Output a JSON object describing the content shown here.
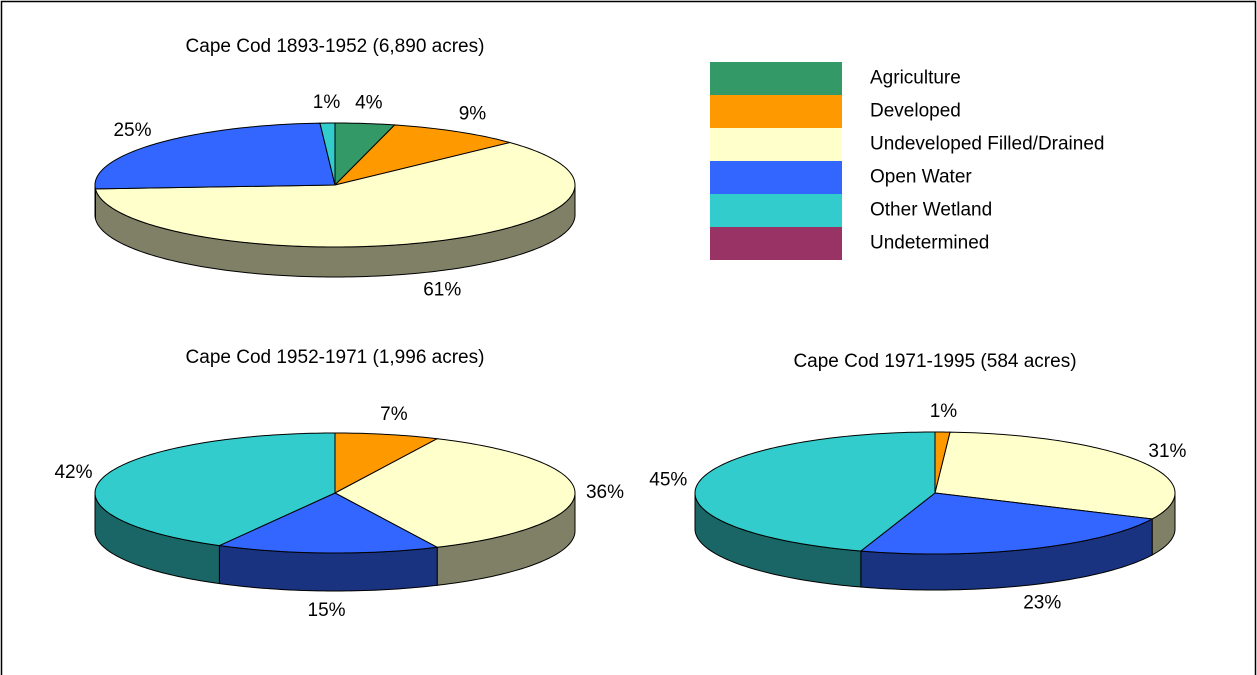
{
  "chart_data": [
    {
      "type": "pie",
      "title": "Cape Cod 1893-1952 (6,890 acres)",
      "categories": [
        "Agriculture",
        "Developed",
        "Undeveloped Filled/Drained",
        "Open Water",
        "Other Wetland",
        "Undetermined"
      ],
      "colors": [
        "#339966",
        "#FF9900",
        "#FFFFCC",
        "#3366FF",
        "#33CCCC",
        "#993366"
      ],
      "values": [
        4,
        9,
        61,
        25,
        1,
        0
      ],
      "value_labels": [
        "4%",
        "9%",
        "61%",
        "25%",
        "1%",
        null
      ],
      "legend": "top-right"
    },
    {
      "type": "pie",
      "title": "Cape Cod 1952-1971 (1,996 acres)",
      "categories": [
        "Agriculture",
        "Developed",
        "Undeveloped Filled/Drained",
        "Open Water",
        "Other Wetland",
        "Undetermined"
      ],
      "colors": [
        "#339966",
        "#FF9900",
        "#FFFFCC",
        "#3366FF",
        "#33CCCC",
        "#993366"
      ],
      "values": [
        0,
        7,
        36,
        15,
        42,
        0
      ],
      "value_labels": [
        null,
        "7%",
        "36%",
        "15%",
        "42%",
        null
      ]
    },
    {
      "type": "pie",
      "title": "Cape Cod 1971-1995 (584 acres)",
      "categories": [
        "Agriculture",
        "Developed",
        "Undeveloped Filled/Drained",
        "Open Water",
        "Other Wetland",
        "Undetermined"
      ],
      "colors": [
        "#339966",
        "#FF9900",
        "#FFFFCC",
        "#3366FF",
        "#33CCCC",
        "#993366"
      ],
      "values": [
        0,
        1,
        31,
        23,
        45,
        0
      ],
      "value_labels": [
        null,
        "1%",
        "31%",
        "23%",
        "45%",
        null
      ]
    }
  ]
}
